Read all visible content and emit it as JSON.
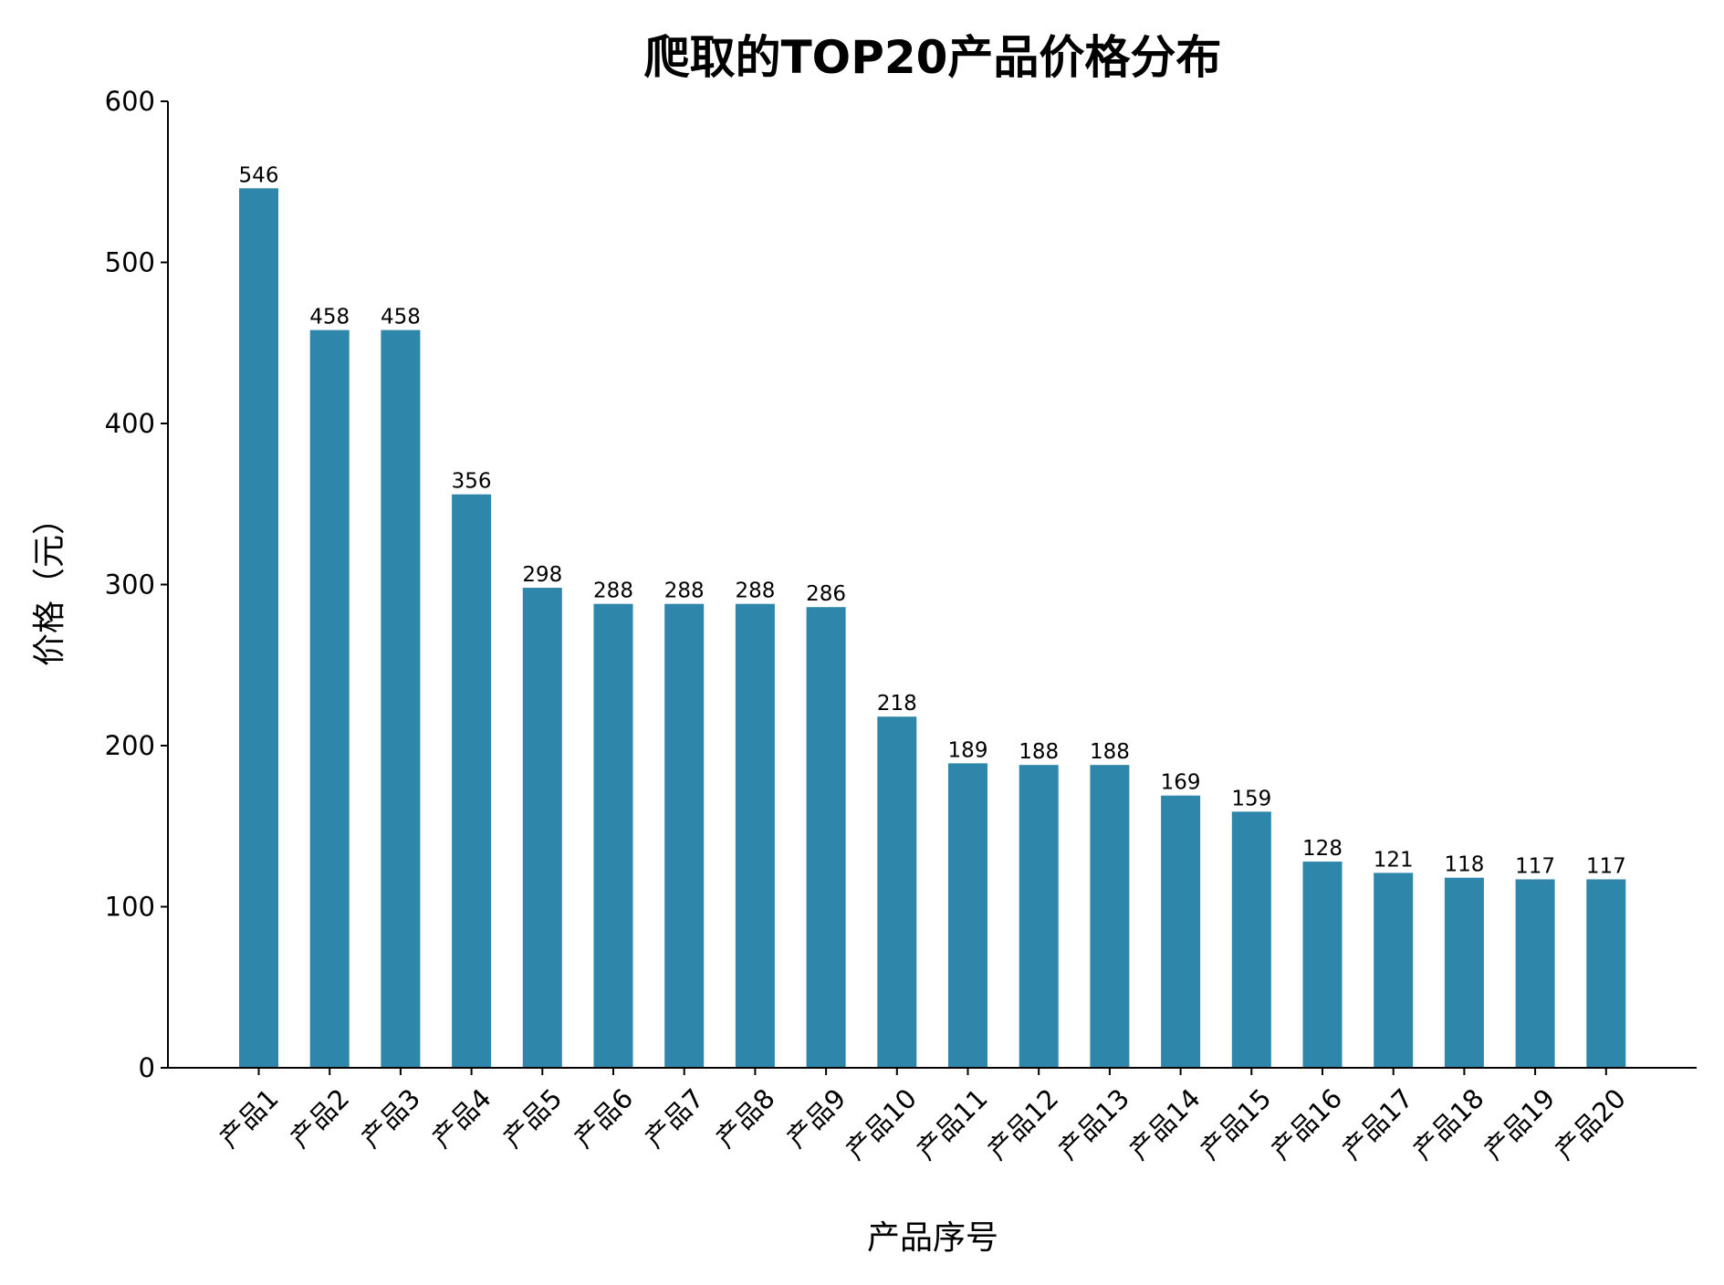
{
  "chart_data": {
    "type": "bar",
    "title": "爬取的TOP20产品价格分布",
    "xlabel": "产品序号",
    "ylabel": "价格（元）",
    "ylim": [
      0,
      600
    ],
    "yticks": [
      0,
      100,
      200,
      300,
      400,
      500,
      600
    ],
    "grid": false,
    "bar_color": "#2e86ab",
    "categories": [
      "产品1",
      "产品2",
      "产品3",
      "产品4",
      "产品5",
      "产品6",
      "产品7",
      "产品8",
      "产品9",
      "产品10",
      "产品11",
      "产品12",
      "产品13",
      "产品14",
      "产品15",
      "产品16",
      "产品17",
      "产品18",
      "产品19",
      "产品20"
    ],
    "values": [
      546,
      458,
      458,
      356,
      298,
      288,
      288,
      288,
      286,
      218,
      189,
      188,
      188,
      169,
      159,
      128,
      121,
      118,
      117,
      117
    ]
  }
}
